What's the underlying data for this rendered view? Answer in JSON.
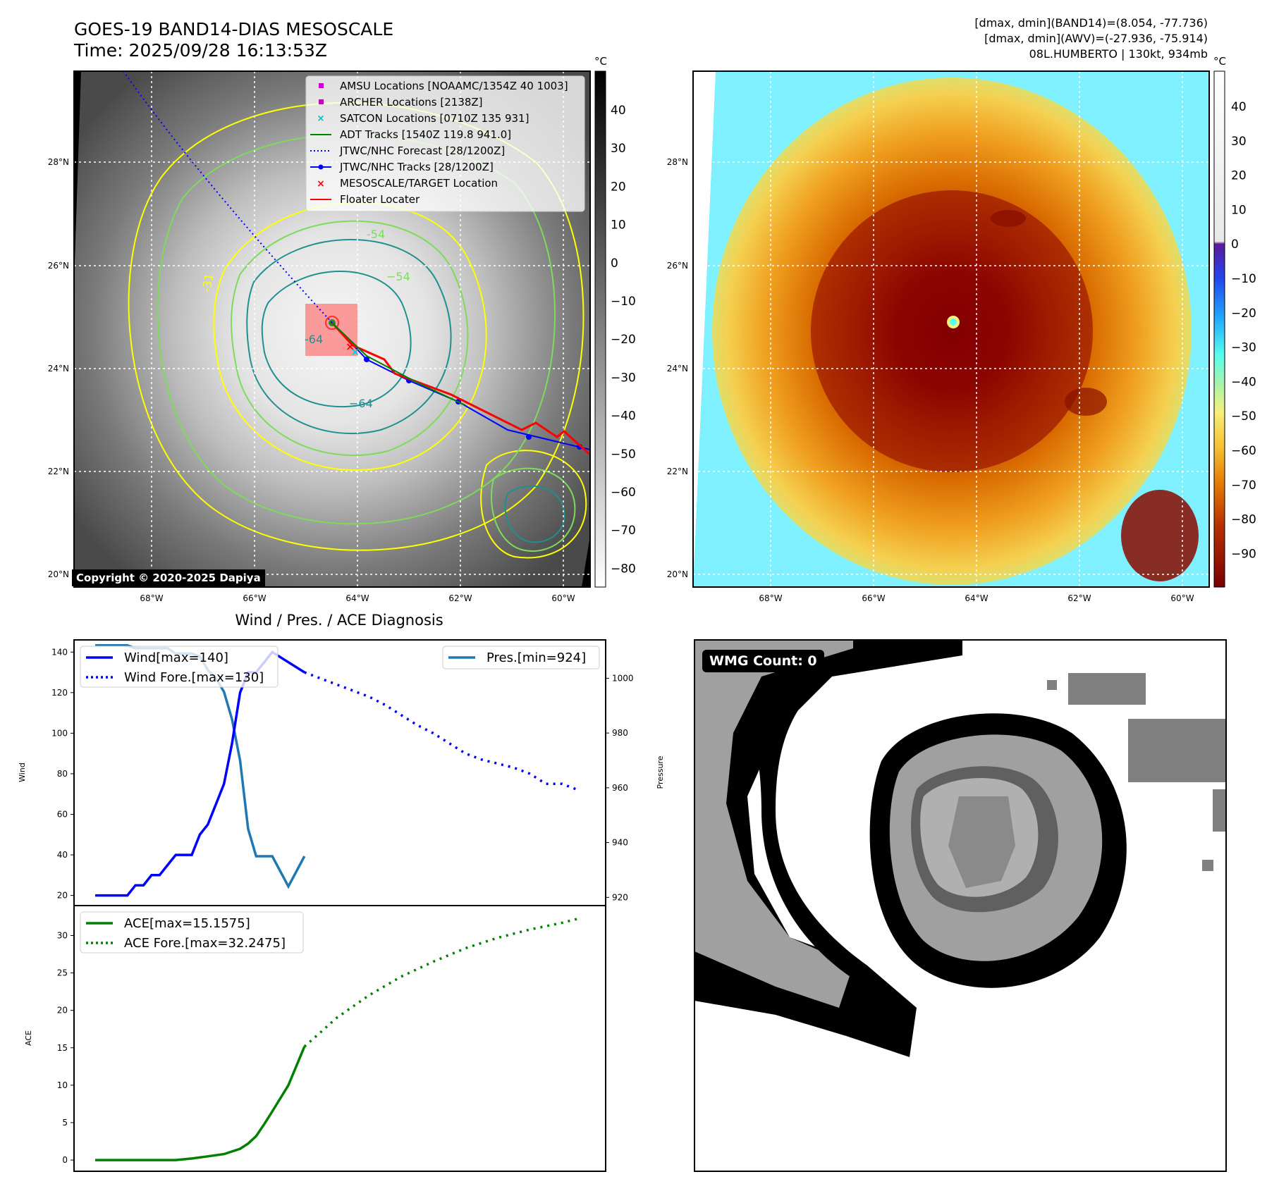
{
  "header": {
    "title_line1": "GOES-19 BAND14-DIAS MESOSCALE",
    "title_line2": "Time: 2025/09/28 16:13:53Z",
    "right_line1": "[dmax, dmin](BAND14)=(8.054, -77.736)",
    "right_line2": "[dmax, dmin](AWV)=(-27.936, -75.914)",
    "right_line3": "08L.HUMBERTO | 130kt, 934mb"
  },
  "map_axes": {
    "lat_labels": [
      "28°N",
      "26°N",
      "24°N",
      "22°N",
      "20°N"
    ],
    "lon_labels": [
      "68°W",
      "66°W",
      "64°W",
      "62°W",
      "60°W"
    ]
  },
  "ir_panel": {
    "legend": [
      "AMSU Locations [NOAAMC/1354Z 40 1003]",
      "ARCHER Locations [2138Z]",
      "SATCON Locations [0710Z 135 931]",
      "ADT Tracks [1540Z 119.8 941.0]",
      "JTWC/NHC Forecast [28/1200Z]",
      "JTWC/NHC Tracks [28/1200Z]",
      "MESOSCALE/TARGET Location",
      "Floater Locater"
    ],
    "contour_labels": [
      "-31",
      "-54",
      "-64",
      "−64",
      "−54"
    ],
    "copyright": "Copyright © 2020-2025 Dapiya",
    "colorbar_unit": "°C",
    "colorbar_ticks": [
      "40",
      "30",
      "20",
      "10",
      "0",
      "−10",
      "−20",
      "−30",
      "−40",
      "−50",
      "−60",
      "−70",
      "−80"
    ]
  },
  "color_panel": {
    "colorbar_unit": "°C",
    "colorbar_ticks": [
      "40",
      "30",
      "20",
      "10",
      "0",
      "−10",
      "−20",
      "−30",
      "−40",
      "−50",
      "−60",
      "−70",
      "−80",
      "−90"
    ]
  },
  "diag_panel": {
    "title": "Wind / Pres. / ACE Diagnosis",
    "wind_ylabel": "Wind",
    "pres_ylabel": "Pressure",
    "ace_ylabel": "ACE",
    "wind_ticks": [
      "20",
      "40",
      "60",
      "80",
      "100",
      "120",
      "140"
    ],
    "pres_ticks": [
      "920",
      "940",
      "960",
      "980",
      "1000"
    ],
    "ace_ticks": [
      "0",
      "5",
      "10",
      "15",
      "20",
      "25",
      "30"
    ],
    "legend_wind": "Wind[max=140]",
    "legend_wind_fore": "Wind Fore.[max=130]",
    "legend_pres": "Pres.[min=924]",
    "legend_ace": "ACE[max=15.1575]",
    "legend_ace_fore": "ACE Fore.[max=32.2475]"
  },
  "wmg_panel": {
    "label": "WMG Count: 0"
  },
  "colors": {
    "wind": "#0000ff",
    "pressure": "#1f77b4",
    "ace": "#008000",
    "track_red": "#ff0000",
    "contour_yellow": "#ffff00",
    "contour_green": "#7ddb5a",
    "contour_teal": "#1f8f8f"
  },
  "chart_data": [
    {
      "type": "line",
      "title": "Wind / Pres. / ACE Diagnosis",
      "ylabel": "Wind",
      "ylim": [
        15,
        146
      ],
      "series": [
        {
          "name": "Wind[max=140]",
          "x": [
            0,
            1,
            2,
            3,
            4,
            5,
            6,
            7,
            8,
            9,
            10,
            11,
            12,
            13,
            14,
            15,
            16,
            17,
            18,
            19,
            20,
            21,
            22,
            24,
            26
          ],
          "values": [
            20,
            20,
            20,
            20,
            20,
            25,
            25,
            30,
            30,
            35,
            40,
            40,
            40,
            50,
            55,
            65,
            75,
            95,
            120,
            130,
            130,
            135,
            140,
            135,
            130
          ]
        },
        {
          "name": "Wind Fore.[max=130]",
          "x": [
            26,
            28,
            30,
            32,
            34,
            36,
            38,
            40,
            42,
            44,
            46,
            48,
            50,
            52,
            54,
            56,
            58,
            60
          ],
          "values": [
            130,
            127,
            124,
            121,
            118,
            114,
            109,
            104,
            100,
            95,
            90,
            87,
            85,
            83,
            80,
            75,
            75,
            72
          ]
        },
        {
          "name": "Pres.[min=924]",
          "axis": "right",
          "x": [
            0,
            1,
            2,
            3,
            4,
            5,
            6,
            7,
            8,
            9,
            10,
            11,
            12,
            13,
            14,
            15,
            16,
            17,
            18,
            19,
            20,
            22,
            24,
            26
          ],
          "values": [
            1012,
            1012,
            1012,
            1012,
            1012,
            1011,
            1011,
            1011,
            1011,
            1011,
            1009,
            1009,
            1009,
            1008,
            1003,
            1000,
            995,
            985,
            970,
            945,
            935,
            935,
            924,
            935
          ]
        }
      ],
      "y2label": "Pressure",
      "y2lim": [
        917,
        1014
      ]
    },
    {
      "type": "line",
      "ylabel": "ACE",
      "ylim": [
        -1.5,
        34
      ],
      "series": [
        {
          "name": "ACE[max=15.1575]",
          "x": [
            0,
            2,
            4,
            6,
            8,
            10,
            12,
            14,
            16,
            18,
            19,
            20,
            21,
            22,
            24,
            26
          ],
          "values": [
            0,
            0,
            0,
            0,
            0,
            0,
            0.2,
            0.5,
            0.8,
            1.5,
            2.2,
            3.2,
            4.8,
            6.5,
            10,
            15.1575
          ]
        },
        {
          "name": "ACE Fore.[max=32.2475]",
          "x": [
            26,
            30,
            34,
            38,
            42,
            46,
            50,
            54,
            58,
            60
          ],
          "values": [
            15.1575,
            19,
            22,
            24.5,
            26.5,
            28.3,
            29.7,
            30.8,
            31.7,
            32.2475
          ]
        }
      ]
    }
  ]
}
